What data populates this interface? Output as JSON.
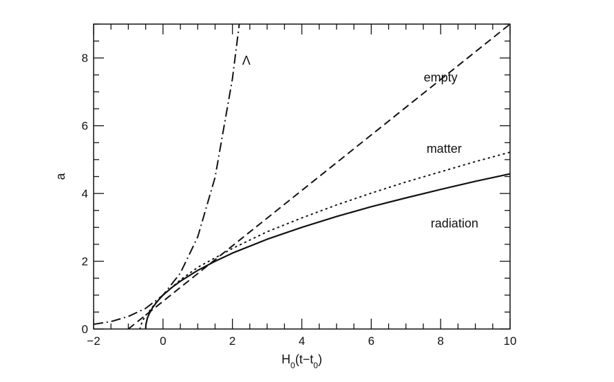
{
  "chart_data": {
    "type": "line",
    "xlabel": "H0(t−t0)",
    "ylabel": "a",
    "xlim": [
      -2,
      10
    ],
    "ylim": [
      0,
      9
    ],
    "x_ticks": [
      "−2",
      "0",
      "2",
      "4",
      "6",
      "8",
      "10"
    ],
    "y_ticks": [
      "0",
      "2",
      "4",
      "6",
      "8"
    ],
    "grid": false,
    "series": [
      {
        "name": "radiation",
        "style": "solid",
        "x": [
          -0.5,
          -0.49,
          -0.45,
          -0.4,
          -0.3,
          -0.2,
          -0.1,
          0,
          0.25,
          0.5,
          1,
          1.5,
          2,
          3,
          4,
          5,
          6,
          7,
          8,
          9,
          10
        ],
        "y": [
          0,
          0.14,
          0.32,
          0.45,
          0.63,
          0.77,
          0.89,
          1.0,
          1.22,
          1.41,
          1.73,
          2.0,
          2.24,
          2.65,
          3.0,
          3.32,
          3.61,
          3.87,
          4.12,
          4.36,
          4.58
        ]
      },
      {
        "name": "matter",
        "style": "dotted",
        "x": [
          -0.667,
          -0.6,
          -0.5,
          -0.4,
          -0.2,
          0,
          0.5,
          1,
          2,
          3,
          4,
          5,
          6,
          7,
          8,
          9,
          10
        ],
        "y": [
          0,
          0.22,
          0.4,
          0.52,
          0.79,
          1.0,
          1.45,
          1.82,
          2.38,
          2.87,
          3.28,
          3.66,
          4.01,
          4.34,
          4.64,
          4.94,
          5.22
        ]
      },
      {
        "name": "empty",
        "style": "dashed",
        "x": [
          -1,
          10
        ],
        "y": [
          0,
          9
        ]
      },
      {
        "name": "Λ",
        "style": "dashdot",
        "x": [
          -2,
          -1.5,
          -1,
          -0.5,
          0,
          0.5,
          1,
          1.5,
          2,
          2.2
        ],
        "y": [
          0.14,
          0.22,
          0.37,
          0.61,
          1.0,
          1.65,
          2.72,
          4.48,
          7.39,
          9.03
        ]
      }
    ],
    "annotations": [
      {
        "text": "Λ",
        "x": 2.4,
        "y": 7.8
      },
      {
        "text": "empty",
        "x": 8.0,
        "y": 7.3
      },
      {
        "text": "matter",
        "x": 8.1,
        "y": 5.2
      },
      {
        "text": "radiation",
        "x": 8.4,
        "y": 3.0
      }
    ]
  }
}
